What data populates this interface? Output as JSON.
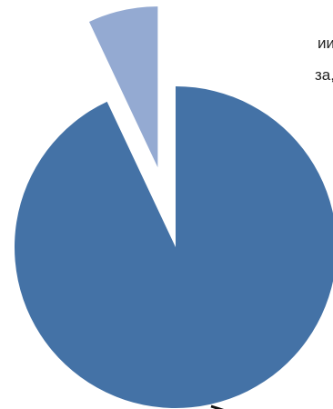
{
  "chart_data": {
    "type": "pie",
    "title": "",
    "slices": [
      {
        "value": 93,
        "color": "#4472a6",
        "exploded": false
      },
      {
        "value": 7,
        "color": "#94aad2",
        "exploded": true
      }
    ]
  },
  "clipped_text": {
    "line1": "ии",
    "line2": "за,"
  }
}
